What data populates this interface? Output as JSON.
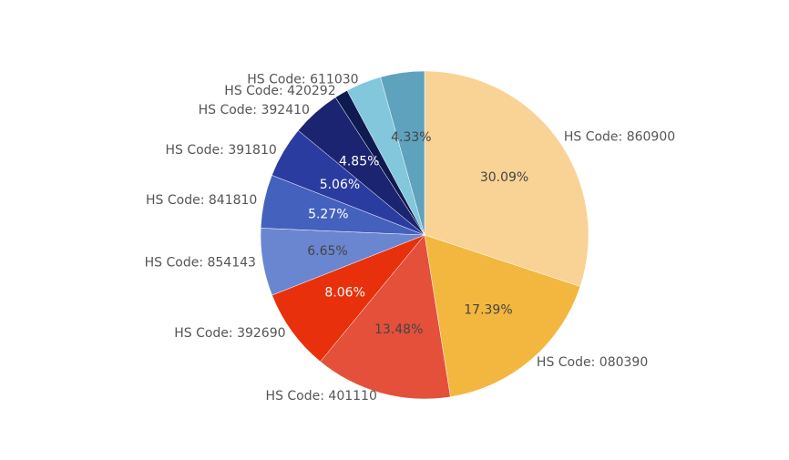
{
  "chart_data": {
    "type": "pie",
    "categories": [
      "HS Code: 860900",
      "HS Code: 080390",
      "HS Code: 401110",
      "HS Code: 392690",
      "HS Code: 854143",
      "HS Code: 841810",
      "HS Code: 391810",
      "HS Code: 392410",
      "HS Code: 420292",
      "HS Code: 611030",
      null
    ],
    "values": [
      30.09,
      17.39,
      13.48,
      8.06,
      6.65,
      5.27,
      5.06,
      4.85,
      1.32,
      3.5,
      4.33
    ],
    "value_labels": [
      "30.09%",
      "17.39%",
      "13.48%",
      "8.06%",
      "6.65%",
      "5.27%",
      "5.06%",
      "4.85%",
      null,
      null,
      "4.33%"
    ],
    "colors": [
      "#f8d395",
      "#f3b73f",
      "#e4503a",
      "#e8310c",
      "#6a86d0",
      "#4461be",
      "#2a3ca0",
      "#1b2470",
      "#0f1a50",
      "#82c7db",
      "#5ea2bd"
    ]
  }
}
